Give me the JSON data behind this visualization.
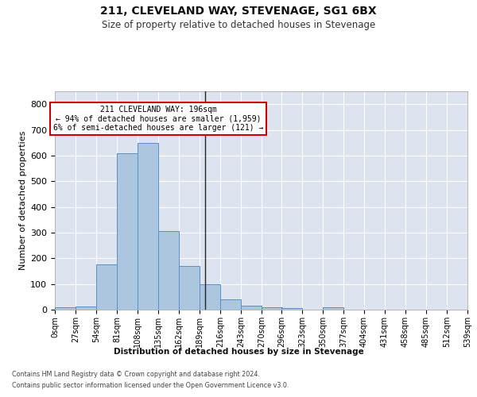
{
  "title": "211, CLEVELAND WAY, STEVENAGE, SG1 6BX",
  "subtitle": "Size of property relative to detached houses in Stevenage",
  "xlabel": "Distribution of detached houses by size in Stevenage",
  "ylabel": "Number of detached properties",
  "footer_line1": "Contains HM Land Registry data © Crown copyright and database right 2024.",
  "footer_line2": "Contains public sector information licensed under the Open Government Licence v3.0.",
  "bin_edges": [
    0,
    27,
    54,
    81,
    108,
    135,
    162,
    189,
    216,
    243,
    270,
    296,
    323,
    350,
    377,
    404,
    431,
    458,
    485,
    512,
    539
  ],
  "bar_heights": [
    8,
    13,
    175,
    610,
    650,
    305,
    170,
    98,
    40,
    15,
    8,
    5,
    0,
    8,
    0,
    0,
    0,
    0,
    0,
    0
  ],
  "bar_color": "#adc6e0",
  "bar_edge_color": "#5b8fc9",
  "subject_value": 196,
  "subject_label": "211 CLEVELAND WAY: 196sqm",
  "annotation_line1": "← 94% of detached houses are smaller (1,959)",
  "annotation_line2": "6% of semi-detached houses are larger (121) →",
  "vline_color": "#222222",
  "annotation_box_edge": "#cc0000",
  "annotation_box_face": "#ffffff",
  "ylim": [
    0,
    850
  ],
  "yticks": [
    0,
    100,
    200,
    300,
    400,
    500,
    600,
    700,
    800
  ],
  "plot_background": "#dde3ef",
  "grid_color": "#ffffff",
  "tick_labels": [
    "0sqm",
    "27sqm",
    "54sqm",
    "81sqm",
    "108sqm",
    "135sqm",
    "162sqm",
    "189sqm",
    "216sqm",
    "243sqm",
    "270sqm",
    "296sqm",
    "323sqm",
    "350sqm",
    "377sqm",
    "404sqm",
    "431sqm",
    "458sqm",
    "485sqm",
    "512sqm",
    "539sqm"
  ]
}
